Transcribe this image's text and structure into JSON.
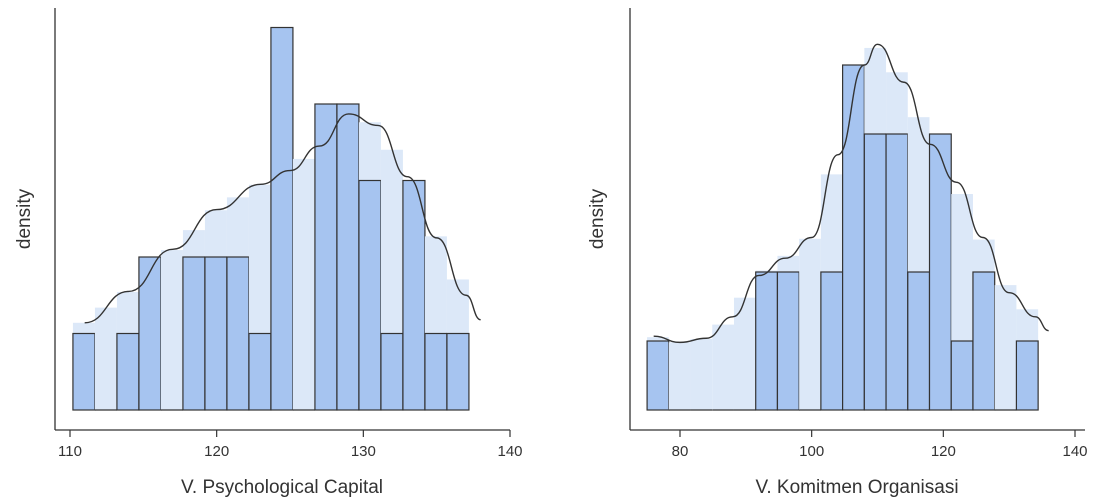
{
  "chart_data": [
    {
      "type": "histogram",
      "xlabel": "V. Psychological Capital",
      "ylabel": "density",
      "xticks": [
        110,
        120,
        130,
        140
      ],
      "xlim": [
        108.5,
        141
      ],
      "bin_width": 1.5,
      "bins_start": 110.2,
      "counts": [
        1,
        0,
        1,
        2,
        0,
        2,
        2,
        2,
        1,
        5,
        0,
        4,
        4,
        3,
        1,
        3,
        1,
        1
      ],
      "density_curve": [
        [
          111,
          1.14
        ],
        [
          114,
          1.55
        ],
        [
          117,
          2.1
        ],
        [
          120,
          2.62
        ],
        [
          123,
          2.95
        ],
        [
          125,
          3.13
        ],
        [
          127,
          3.45
        ],
        [
          129,
          3.87
        ],
        [
          131,
          3.72
        ],
        [
          133,
          3.05
        ],
        [
          135,
          2.25
        ],
        [
          137,
          1.5
        ],
        [
          138,
          1.18
        ]
      ],
      "colors": {
        "bar": "#a6c4f0",
        "shade": "#dce8f8",
        "curve": "#333333"
      }
    },
    {
      "type": "histogram",
      "xlabel": "V. Komitmen Organisasi",
      "ylabel": "density",
      "xticks": [
        80,
        100,
        120,
        140
      ],
      "xlim": [
        72.5,
        141
      ],
      "bin_width": 3.3,
      "bins_start": 75,
      "counts": [
        1,
        0,
        0,
        0,
        0,
        2,
        2,
        0,
        2,
        5,
        4,
        4,
        2,
        4,
        1,
        2,
        0,
        1
      ],
      "density_curve": [
        [
          76,
          1.07
        ],
        [
          80,
          0.98
        ],
        [
          84,
          1.04
        ],
        [
          88,
          1.35
        ],
        [
          92,
          1.95
        ],
        [
          96,
          2.2
        ],
        [
          100,
          2.5
        ],
        [
          104,
          3.7
        ],
        [
          108,
          5.0
        ],
        [
          110,
          5.3
        ],
        [
          114,
          4.75
        ],
        [
          118,
          3.85
        ],
        [
          122,
          3.3
        ],
        [
          126,
          2.5
        ],
        [
          130,
          1.7
        ],
        [
          134,
          1.35
        ],
        [
          136,
          1.15
        ]
      ],
      "colors": {
        "bar": "#a6c4f0",
        "shade": "#dce8f8",
        "curve": "#333333"
      }
    }
  ]
}
